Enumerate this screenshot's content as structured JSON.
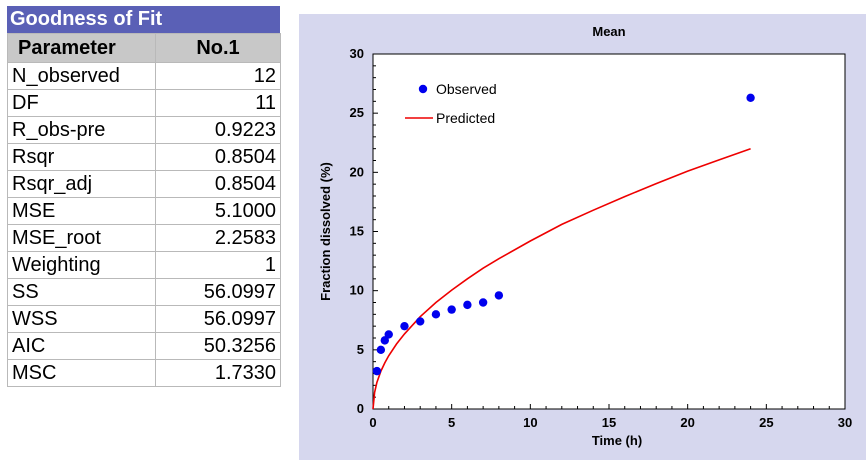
{
  "table": {
    "title": "Goodness of Fit",
    "headers": [
      "Parameter",
      "No.1"
    ],
    "rows": [
      [
        "N_observed",
        "12"
      ],
      [
        "DF",
        "11"
      ],
      [
        "R_obs-pre",
        "0.9223"
      ],
      [
        "Rsqr",
        "0.8504"
      ],
      [
        "Rsqr_adj",
        "0.8504"
      ],
      [
        "MSE",
        "5.1000"
      ],
      [
        "MSE_root",
        "2.2583"
      ],
      [
        "Weighting",
        "1"
      ],
      [
        "SS",
        "56.0997"
      ],
      [
        "WSS",
        "56.0997"
      ],
      [
        "AIC",
        "50.3256"
      ],
      [
        "MSC",
        "1.7330"
      ]
    ]
  },
  "chart_data": {
    "type": "scatter",
    "title": "Mean",
    "xlabel": "Time (h)",
    "ylabel": "Fraction dissolved (%)",
    "xlim": [
      0,
      30
    ],
    "ylim": [
      0,
      30
    ],
    "xticks": [
      0,
      5,
      10,
      15,
      20,
      25,
      30
    ],
    "yticks": [
      0,
      5,
      10,
      15,
      20,
      25,
      30
    ],
    "legend_position": "top-left",
    "colors": {
      "observed": "#0000ee",
      "predicted": "#ee0000",
      "plot_bg": "#ffffff",
      "panel_bg": "#d6d7ee"
    },
    "series": [
      {
        "name": "Observed",
        "kind": "points",
        "x": [
          0.25,
          0.5,
          0.75,
          1,
          2,
          3,
          4,
          5,
          6,
          7,
          8,
          24
        ],
        "y": [
          3.2,
          5.0,
          5.8,
          6.3,
          7.0,
          7.4,
          8.0,
          8.4,
          8.8,
          9.0,
          9.6,
          26.3
        ]
      },
      {
        "name": "Predicted",
        "kind": "line",
        "x": [
          0,
          0.1,
          0.25,
          0.5,
          0.75,
          1,
          1.5,
          2,
          3,
          4,
          5,
          6,
          7,
          8,
          10,
          12,
          14,
          16,
          18,
          20,
          22,
          24
        ],
        "y": [
          0,
          1.4,
          2.25,
          3.2,
          3.9,
          4.5,
          5.5,
          6.35,
          7.8,
          9.0,
          10.05,
          11.0,
          11.9,
          12.7,
          14.2,
          15.6,
          16.8,
          17.95,
          19.05,
          20.1,
          21.05,
          22.0
        ]
      }
    ]
  }
}
